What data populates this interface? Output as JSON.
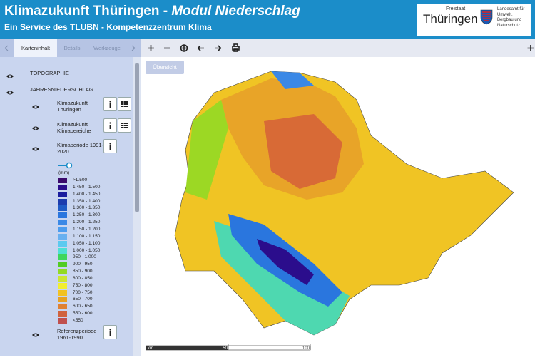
{
  "header": {
    "title": "Klimazukunft Thüringen - ",
    "title_emphasis": "Modul Niederschlag",
    "subtitle": "Ein Service des TLUBN - Kompetenzzentrum Klima",
    "logo": {
      "state_small": "Freistaat",
      "state": "Thüringen",
      "agency": "Landesamt für Umwelt, Bergbau und Naturschutz"
    }
  },
  "tabs": [
    "Karteninhalt",
    "Details",
    "Werkzeuge"
  ],
  "layers": [
    "TOPOGRAPHIE",
    "JAHRESNIEDERSCHLAG"
  ],
  "sublayers": [
    "Klimazukunft Thüringen",
    "Klimazukunft Klimabereiche",
    "Klimaperiode 1991-2020",
    "Referenzperiode 1961-1990"
  ],
  "legend": {
    "unit": "(mm)",
    "items": [
      {
        "label": ">1.500",
        "color": "#3b0a6b"
      },
      {
        "label": "1.450 - 1.500",
        "color": "#2b0d8c"
      },
      {
        "label": "1.400 - 1.450",
        "color": "#1a1c9e"
      },
      {
        "label": "1.350 - 1.400",
        "color": "#1c3cae"
      },
      {
        "label": "1.300 - 1.350",
        "color": "#1f5cc6"
      },
      {
        "label": "1.250 - 1.300",
        "color": "#2a76de"
      },
      {
        "label": "1.200 - 1.250",
        "color": "#3a88e6"
      },
      {
        "label": "1.150 - 1.200",
        "color": "#4c9cee"
      },
      {
        "label": "1.100 - 1.150",
        "color": "#68b0f0"
      },
      {
        "label": "1.050 - 1.100",
        "color": "#5ccaf0"
      },
      {
        "label": "1.000 - 1.050",
        "color": "#4ee0d4"
      },
      {
        "label": "950 - 1.000",
        "color": "#3ed65c"
      },
      {
        "label": "900 - 950",
        "color": "#52cc22"
      },
      {
        "label": "850 - 900",
        "color": "#92da22"
      },
      {
        "label": "800 - 850",
        "color": "#cce632"
      },
      {
        "label": "750 - 800",
        "color": "#f2ee30"
      },
      {
        "label": "700 - 750",
        "color": "#f2c222"
      },
      {
        "label": "650 - 700",
        "color": "#e8a222"
      },
      {
        "label": "600 - 650",
        "color": "#e08232"
      },
      {
        "label": "550 - 600",
        "color": "#d0623e"
      },
      {
        "label": "<550",
        "color": "#c0504e"
      }
    ]
  },
  "map": {
    "overview_button": "Übersicht",
    "scale": {
      "unit": "km",
      "ticks": [
        50,
        100
      ]
    }
  }
}
